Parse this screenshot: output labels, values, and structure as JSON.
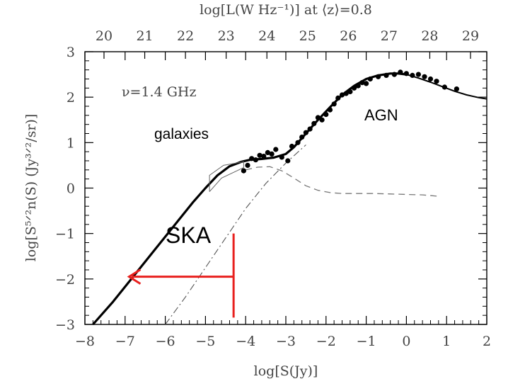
{
  "chart_data": {
    "type": "line",
    "x_axis": {
      "label": "log[S(Jy)]",
      "range": [
        -8,
        2
      ],
      "ticks": [
        -8,
        -7,
        -6,
        -5,
        -4,
        -3,
        -2,
        -1,
        0,
        1,
        2
      ],
      "tick_labels": [
        "−8",
        "−7",
        "−6",
        "−5",
        "−4",
        "−3",
        "−2",
        "−1",
        "0",
        "1",
        "2"
      ]
    },
    "y_axis": {
      "label": "log[S⁵ᐟ²n(S)  (Jy³ᐟ²/sr)]",
      "range": [
        -3,
        3
      ],
      "ticks": [
        -3,
        -2,
        -1,
        0,
        1,
        2,
        3
      ],
      "tick_labels": [
        "−3",
        "−2",
        "−1",
        "0",
        "1",
        "2",
        "3"
      ]
    },
    "top_axis": {
      "label": "log[L(W Hz⁻¹)] at ⟨z⟩=0.8",
      "ticks": [
        20,
        21,
        22,
        23,
        24,
        25,
        26,
        27,
        28,
        29
      ],
      "tick_labels": [
        "20",
        "21",
        "22",
        "23",
        "24",
        "25",
        "26",
        "27",
        "28",
        "29"
      ]
    },
    "series": [
      {
        "style": "thick-solid",
        "x": [
          -7.8,
          -7.3,
          -6.8,
          -6.3,
          -5.8,
          -5.3,
          -5.0,
          -4.7,
          -4.4,
          -4.1,
          -3.9,
          -3.6,
          -3.3,
          -3.0,
          -2.8,
          -2.5,
          -2.2,
          -1.9,
          -1.6,
          -1.3,
          -1.0,
          -0.7,
          -0.4,
          -0.2,
          0.0
        ],
        "y": [
          -3.0,
          -2.5,
          -1.95,
          -1.4,
          -0.85,
          -0.3,
          0.0,
          0.28,
          0.48,
          0.58,
          0.62,
          0.64,
          0.67,
          0.75,
          0.9,
          1.2,
          1.5,
          1.78,
          2.05,
          2.25,
          2.4,
          2.48,
          2.52,
          2.52,
          2.5
        ]
      },
      {
        "style": "thin-solid",
        "x": [
          0.0,
          0.3,
          0.6,
          0.9,
          1.2,
          1.5,
          1.8,
          2.0
        ],
        "y": [
          2.5,
          2.42,
          2.33,
          2.23,
          2.13,
          2.05,
          1.99,
          1.96
        ]
      },
      {
        "style": "dashed",
        "x": [
          -4.0,
          -3.7,
          -3.4,
          -3.1,
          -2.8,
          -2.5,
          -2.2,
          -1.9,
          -1.6,
          -1.2,
          -0.8,
          -0.4,
          0.0,
          0.4,
          0.8
        ],
        "y": [
          0.4,
          0.46,
          0.47,
          0.38,
          0.22,
          0.05,
          -0.05,
          -0.1,
          -0.12,
          -0.12,
          -0.12,
          -0.13,
          -0.14,
          -0.15,
          -0.18
        ]
      },
      {
        "style": "dash-dot",
        "x": [
          -6.0,
          -5.5,
          -5.0,
          -4.5,
          -4.0,
          -3.5,
          -3.0,
          -2.5
        ],
        "y": [
          -3.0,
          -2.4,
          -1.75,
          -1.1,
          -0.45,
          0.1,
          0.55,
          0.95
        ]
      },
      {
        "style": "data-points",
        "x": [
          -4.05,
          -3.95,
          -3.85,
          -3.75,
          -3.65,
          -3.55,
          -3.45,
          -3.35,
          -3.25,
          -3.1,
          -2.95,
          -2.85,
          -2.7,
          -2.6,
          -2.5,
          -2.4,
          -2.3,
          -2.2,
          -2.1,
          -2.0,
          -1.9,
          -1.8,
          -1.7,
          -1.6,
          -1.5,
          -1.4,
          -1.3,
          -1.2,
          -1.1,
          -1.0,
          -0.9,
          -0.7,
          -0.5,
          -0.3,
          -0.15,
          0.0,
          0.15,
          0.3,
          0.45,
          0.6,
          0.75,
          0.95,
          1.25
        ],
        "y": [
          0.38,
          0.5,
          0.65,
          0.62,
          0.72,
          0.7,
          0.78,
          0.75,
          0.85,
          0.68,
          0.6,
          0.92,
          1.0,
          1.12,
          1.22,
          1.3,
          1.42,
          1.55,
          1.5,
          1.62,
          1.72,
          1.85,
          1.98,
          2.05,
          2.08,
          2.12,
          2.2,
          2.25,
          2.32,
          2.3,
          2.4,
          2.45,
          2.48,
          2.5,
          2.55,
          2.52,
          2.48,
          2.5,
          2.45,
          2.4,
          2.35,
          2.22,
          2.18
        ]
      }
    ],
    "box": [
      [
        -4.9,
        -0.08
      ],
      [
        -4.9,
        0.28
      ],
      [
        -4.55,
        0.5
      ],
      [
        -4.05,
        0.58
      ],
      [
        -4.05,
        0.45
      ],
      [
        -4.6,
        0.22
      ],
      [
        -4.9,
        -0.08
      ]
    ],
    "annotations": {
      "nu": "ν=1.4 GHz",
      "galaxies": "galaxies",
      "agn": "AGN",
      "ska": "SKA"
    },
    "ska_marker": {
      "x": -4.3,
      "y_bottom": -2.85,
      "y_top": -1.0,
      "arrow_from": -4.3,
      "arrow_to": -6.9,
      "arrow_y": -1.95,
      "color": "#e8201e"
    },
    "grid": false,
    "legend": "none"
  }
}
